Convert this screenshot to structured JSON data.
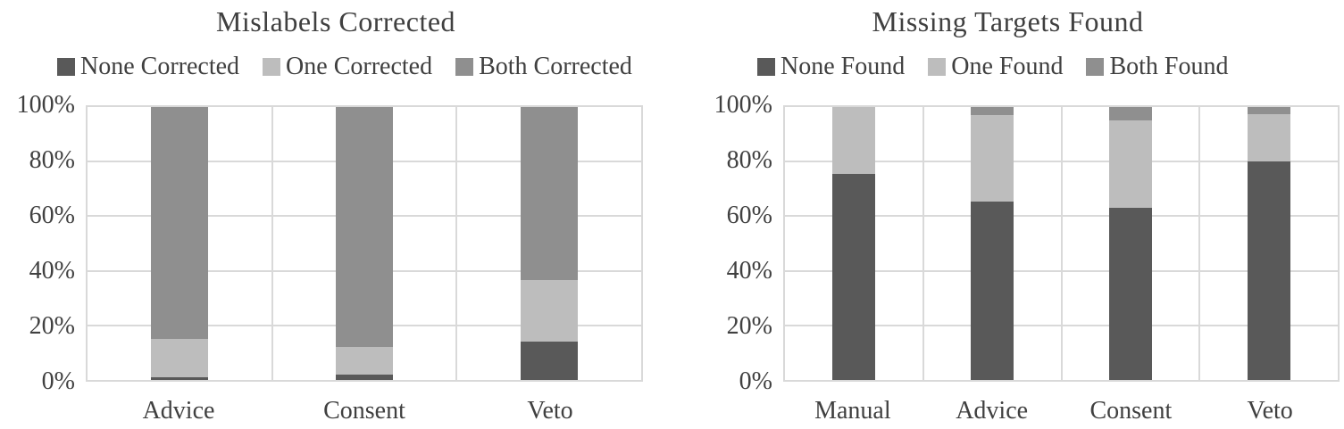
{
  "colors": {
    "dark": "#595959",
    "light": "#bdbdbd",
    "medium": "#8f8f8f",
    "gridline": "#d9d9d9",
    "text": "#404040"
  },
  "chart_data": [
    {
      "type": "bar",
      "stacked": true,
      "units": "percent of trials",
      "title": "Mislabels Corrected",
      "categories": [
        "Advice",
        "Consent",
        "Veto"
      ],
      "series": [
        {
          "name": "None Corrected",
          "color": "dark",
          "values": [
            1,
            2,
            14
          ]
        },
        {
          "name": "One Corrected",
          "color": "light",
          "values": [
            14,
            10,
            22.5
          ]
        },
        {
          "name": "Both Corrected",
          "color": "medium",
          "values": [
            85,
            88,
            63.5
          ]
        }
      ],
      "ylabel_ticks": [
        "100%",
        "80%",
        "60%",
        "40%",
        "20%",
        "0%"
      ],
      "ylim": [
        0,
        100
      ],
      "legend_position": "top",
      "grid": true
    },
    {
      "type": "bar",
      "stacked": true,
      "units": "percent of trials",
      "title": "Missing Targets Found",
      "categories": [
        "Manual",
        "Advice",
        "Consent",
        "Veto"
      ],
      "series": [
        {
          "name": "None Found",
          "color": "dark",
          "values": [
            75.5,
            65.5,
            63,
            80
          ]
        },
        {
          "name": "One Found",
          "color": "light",
          "values": [
            24.5,
            31.5,
            32,
            17.5
          ]
        },
        {
          "name": "Both Found",
          "color": "medium",
          "values": [
            0,
            3,
            5,
            2.5
          ]
        }
      ],
      "ylabel_ticks": [
        "100%",
        "80%",
        "60%",
        "40%",
        "20%",
        "0%"
      ],
      "ylim": [
        0,
        100
      ],
      "legend_position": "top",
      "grid": true
    }
  ]
}
